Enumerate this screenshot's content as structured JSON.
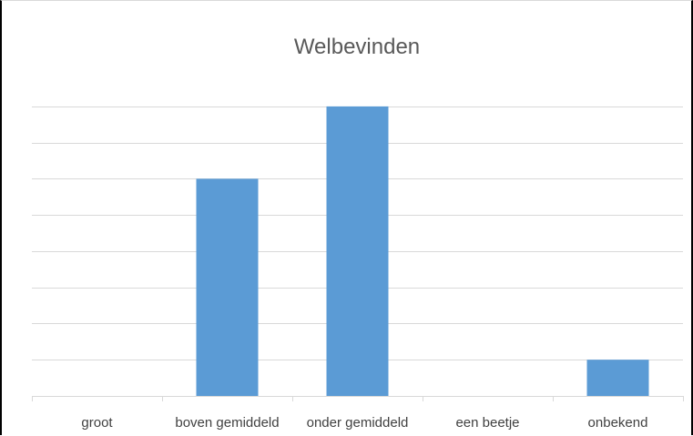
{
  "chart_data": {
    "type": "bar",
    "title": "Welbevinden",
    "categories": [
      "groot",
      "boven gemiddeld",
      "onder gemiddeld",
      "een beetje",
      "onbekend"
    ],
    "values": [
      0,
      6,
      8,
      0,
      1
    ],
    "ylim": [
      0,
      8.6
    ],
    "grid": true,
    "gridlines_every": 1,
    "legend": "none",
    "bar_color": "#5b9bd5",
    "grid_color": "#d9d9d9",
    "axis_color": "#d9d9d9"
  }
}
